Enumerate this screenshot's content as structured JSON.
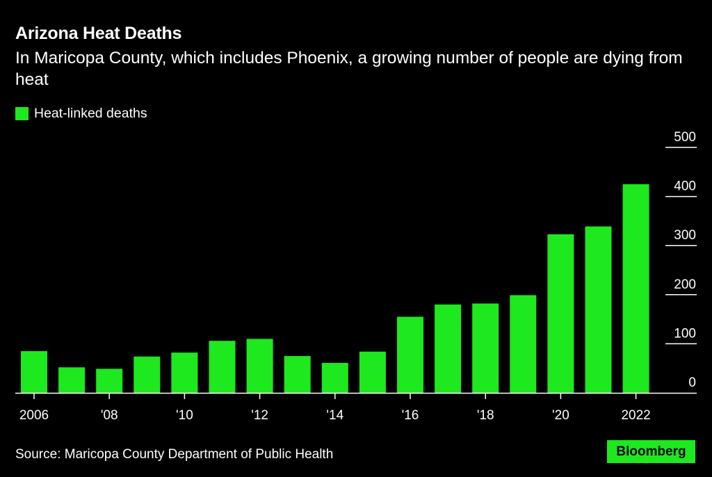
{
  "colors": {
    "background": "#000000",
    "bar": "#1ee81e",
    "text": "#ffffff"
  },
  "header": {
    "title": "Arizona Heat Deaths",
    "subtitle": "In Maricopa County, which includes Phoenix, a growing number of people are dying from heat"
  },
  "legend": {
    "label": "Heat-linked deaths",
    "swatch_color": "#1ee81e"
  },
  "footer": {
    "source": "Source: Maricopa County Department of Public Health",
    "logo": "Bloomberg"
  },
  "chart_data": {
    "type": "bar",
    "title": "Arizona Heat Deaths",
    "subtitle": "In Maricopa County, which includes Phoenix, a growing number of people are dying from heat",
    "xlabel": "",
    "ylabel": "",
    "categories": [
      "2006",
      "2007",
      "2008",
      "2009",
      "2010",
      "2011",
      "2012",
      "2013",
      "2014",
      "2015",
      "2016",
      "2017",
      "2018",
      "2019",
      "2020",
      "2021",
      "2022"
    ],
    "x_tick_labels": [
      "2006",
      "",
      "'08",
      "",
      "'10",
      "",
      "'12",
      "",
      "'14",
      "",
      "'16",
      "",
      "'18",
      "",
      "'20",
      "",
      "2022"
    ],
    "series": [
      {
        "name": "Heat-linked deaths",
        "values": [
          85,
          52,
          49,
          74,
          82,
          106,
          110,
          75,
          61,
          84,
          155,
          180,
          182,
          199,
          323,
          339,
          425
        ]
      }
    ],
    "ylim": [
      0,
      500
    ],
    "y_ticks": [
      0,
      100,
      200,
      300,
      400,
      500
    ],
    "y_axis_position": "right",
    "grid": false,
    "legend_position": "top-left"
  }
}
